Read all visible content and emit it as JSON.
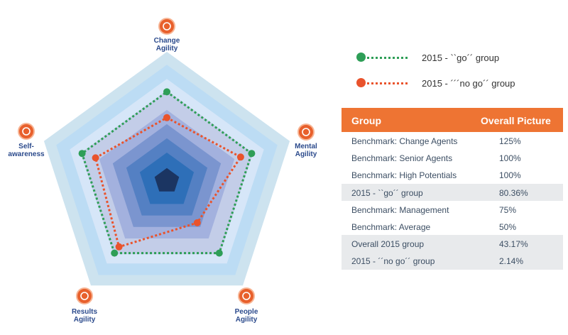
{
  "chart_data": {
    "type": "radar",
    "axes": [
      "Change Agility",
      "Mental Agility",
      "People Agility",
      "Results Agility",
      "Self-awareness"
    ],
    "axis_label_lines": [
      [
        "Change",
        "Agility"
      ],
      [
        "Mental",
        "Agility"
      ],
      [
        "People",
        "Agility"
      ],
      [
        "Results",
        "Agility"
      ],
      [
        "Self-",
        "awareness"
      ]
    ],
    "icons": [
      "change-agility-icon",
      "mental-agility-icon",
      "people-agility-icon",
      "results-agility-icon",
      "self-awareness-icon"
    ],
    "band_levels": [
      1.0,
      0.9,
      0.79,
      0.7,
      0.55,
      0.44,
      0.33,
      0.22,
      0.1
    ],
    "band_colors": [
      "#cde3ef",
      "#bcdcf4",
      "#d6e6f8",
      "#c3cde8",
      "#a3b1de",
      "#7b95cf",
      "#5480c3",
      "#2e6fb8",
      "#1b3562"
    ],
    "series": [
      {
        "name": "2015 - ``go´´ group",
        "values": [
          0.69,
          0.69,
          0.69,
          0.69,
          0.69
        ],
        "color": "#2e9e57"
      },
      {
        "name": "2015 - ´´´no go´´ group",
        "values": [
          0.49,
          0.6,
          0.4,
          0.63,
          0.58
        ],
        "color": "#e9532c"
      }
    ]
  },
  "table": {
    "header": {
      "group": "Group",
      "value": "Overall Picture"
    },
    "header_color": "#ee7433",
    "rows": [
      {
        "group": "Benchmark: Change Agents",
        "value": "125%",
        "shaded": false
      },
      {
        "group": "Benchmark: Senior Agents",
        "value": "100%",
        "shaded": false
      },
      {
        "group": "Benchmark: High Potentials",
        "value": "100%",
        "shaded": false
      },
      {
        "group": "2015 - ``go´´ group",
        "value": "80.36%",
        "shaded": true
      },
      {
        "group": "Benchmark: Management",
        "value": "75%",
        "shaded": false
      },
      {
        "group": "Benchmark: Average",
        "value": "50%",
        "shaded": false
      },
      {
        "group": "Overall 2015 group",
        "value": "43.17%",
        "shaded": true
      },
      {
        "group": "2015 - ´´no go´´ group",
        "value": "2.14%",
        "shaded": true
      }
    ]
  }
}
